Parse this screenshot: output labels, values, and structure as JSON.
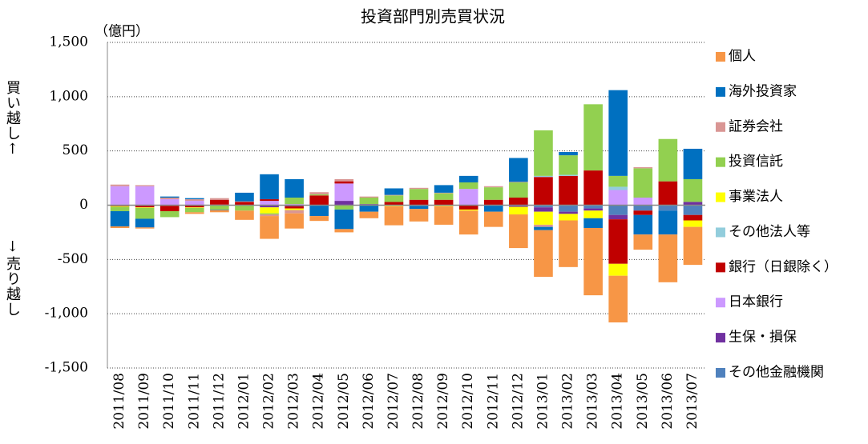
{
  "chart_data": {
    "type": "stacked_bar",
    "title": "投資部門別売買状況",
    "unit_label": "（億円）",
    "ylabel_up": "買い越し↑",
    "ylabel_down": "↓売り越し",
    "categories": [
      "2011/08",
      "2011/09",
      "2011/10",
      "2011/11",
      "2011/12",
      "2012/01",
      "2012/02",
      "2012/03",
      "2012/04",
      "2012/05",
      "2012/06",
      "2012/07",
      "2012/08",
      "2012/09",
      "2012/10",
      "2012/11",
      "2012/12",
      "2013/01",
      "2013/02",
      "2013/03",
      "2013/04",
      "2013/05",
      "2013/06",
      "2013/07"
    ],
    "ylim": [
      -1500,
      1500
    ],
    "yticks": [
      {
        "value": 1500,
        "label": "1,500"
      },
      {
        "value": 1000,
        "label": "1,000"
      },
      500,
      0,
      -500,
      {
        "value": -1000,
        "label": "-1,000"
      },
      {
        "value": -1500,
        "label": "-1,500"
      }
    ],
    "grid": true,
    "legend": "right",
    "series": [
      {
        "name": "個人",
        "color": "#f79646",
        "values": [
          -15,
          -10,
          0,
          -15,
          -20,
          -85,
          -210,
          -140,
          -45,
          -30,
          -60,
          -175,
          -115,
          -170,
          -220,
          -140,
          -310,
          -430,
          -430,
          -620,
          -430,
          -140,
          -440,
          -350
        ]
      },
      {
        "name": "海外投資家",
        "color": "#0070c0",
        "values": [
          -140,
          -80,
          10,
          10,
          -5,
          80,
          230,
          170,
          -100,
          -180,
          -60,
          60,
          -30,
          70,
          60,
          -60,
          220,
          -30,
          30,
          -90,
          790,
          -180,
          -220,
          280
        ]
      },
      {
        "name": "証券会社",
        "color": "#d99694",
        "values": [
          15,
          10,
          15,
          15,
          15,
          5,
          -15,
          -30,
          20,
          20,
          10,
          5,
          10,
          5,
          0,
          10,
          5,
          -20,
          0,
          0,
          0,
          10,
          0,
          0
        ]
      },
      {
        "name": "投資信託",
        "color": "#92d050",
        "values": [
          -40,
          -100,
          -55,
          -40,
          -40,
          -50,
          -10,
          60,
          10,
          -40,
          60,
          60,
          100,
          60,
          60,
          115,
          140,
          420,
          180,
          610,
          100,
          270,
          390,
          210
        ]
      },
      {
        "name": "事業法人",
        "color": "#ffff00",
        "values": [
          -5,
          -5,
          0,
          -5,
          0,
          0,
          -55,
          -15,
          0,
          0,
          0,
          -10,
          -5,
          -10,
          -10,
          0,
          -70,
          -120,
          -60,
          -70,
          -110,
          0,
          0,
          -60
        ]
      },
      {
        "name": "その他法人等",
        "color": "#92cddc",
        "values": [
          0,
          0,
          0,
          0,
          0,
          0,
          0,
          0,
          0,
          0,
          0,
          0,
          0,
          0,
          0,
          0,
          0,
          10,
          10,
          0,
          30,
          0,
          0,
          0
        ]
      },
      {
        "name": "銀行（日銀除く）",
        "color": "#c00000",
        "values": [
          -5,
          -15,
          -50,
          -20,
          45,
          30,
          15,
          -20,
          90,
          20,
          0,
          30,
          50,
          50,
          -40,
          50,
          70,
          260,
          270,
          320,
          -410,
          -40,
          220,
          -50
        ]
      },
      {
        "name": "日本銀行",
        "color": "#cc99ff",
        "values": [
          170,
          175,
          55,
          40,
          5,
          0,
          40,
          10,
          0,
          160,
          0,
          0,
          0,
          0,
          150,
          0,
          0,
          0,
          0,
          0,
          140,
          70,
          0,
          0
        ]
      },
      {
        "name": "生保・損保",
        "color": "#7030a0",
        "values": [
          -5,
          -5,
          -5,
          0,
          0,
          0,
          -20,
          -10,
          0,
          40,
          10,
          0,
          0,
          0,
          0,
          0,
          -15,
          -40,
          -20,
          -20,
          -40,
          0,
          0,
          30
        ]
      },
      {
        "name": "その他金融機関",
        "color": "#4f81bd",
        "values": [
          5,
          0,
          0,
          0,
          0,
          0,
          0,
          0,
          0,
          0,
          0,
          0,
          0,
          0,
          0,
          0,
          0,
          -20,
          -60,
          -30,
          -90,
          -50,
          -50,
          -90
        ]
      }
    ]
  }
}
